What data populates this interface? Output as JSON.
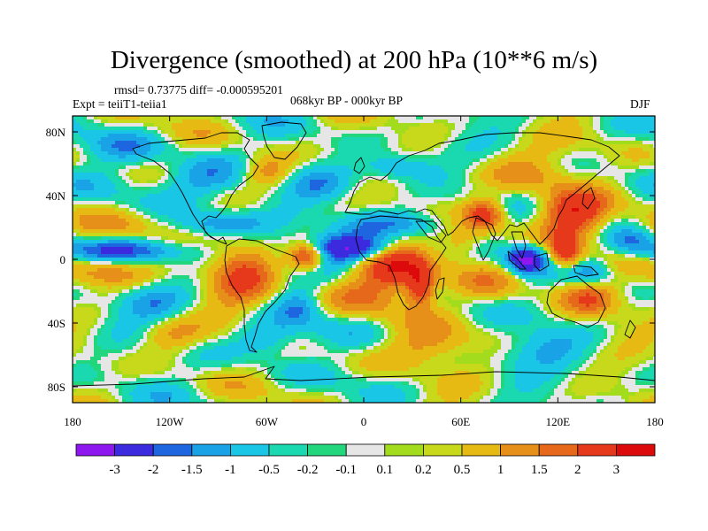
{
  "title": "Divergence (smoothed) at 200 hPa (10**6 m/s)",
  "stats_text": "rmsd= 0.73775 diff= -0.000595201",
  "experiment_text": "Expt = teiiT1-teiia1",
  "period_text": "068kyr BP - 000kyr BP",
  "season_text": "DJF",
  "chart_data": {
    "type": "heatmap",
    "projection": "cylindrical-equidistant",
    "xlim": [
      -180,
      180
    ],
    "ylim": [
      -90,
      90
    ],
    "x_ticks": [
      {
        "value": -180,
        "label": "180"
      },
      {
        "value": -120,
        "label": "120W"
      },
      {
        "value": -60,
        "label": "60W"
      },
      {
        "value": 0,
        "label": "0"
      },
      {
        "value": 60,
        "label": "60E"
      },
      {
        "value": 120,
        "label": "120E"
      },
      {
        "value": 180,
        "label": "180"
      }
    ],
    "y_ticks": [
      {
        "value": 80,
        "label": "80N"
      },
      {
        "value": 40,
        "label": "40N"
      },
      {
        "value": 0,
        "label": "0"
      },
      {
        "value": -40,
        "label": "40S"
      },
      {
        "value": -80,
        "label": "80S"
      }
    ],
    "levels": [
      -3,
      -2,
      -1.5,
      -1,
      -0.5,
      -0.2,
      -0.1,
      0.1,
      0.2,
      0.5,
      1,
      1.5,
      2,
      3
    ],
    "level_labels": [
      "-3",
      "-2",
      "-1.5",
      "-1",
      "-0.5",
      "-0.2",
      "-0.1",
      "0.1",
      "0.2",
      "0.5",
      "1",
      "1.5",
      "2",
      "3"
    ],
    "colors": [
      "#8e17f0",
      "#3c2adf",
      "#1e66e0",
      "#1aa2e6",
      "#19c6e6",
      "#1ad8b0",
      "#22d67e",
      "#e6e6e6",
      "#a2dc1c",
      "#c8d81a",
      "#e6ba12",
      "#e6901a",
      "#e6681a",
      "#e6381a",
      "#dc0a0a"
    ],
    "features": [
      {
        "lon": -5,
        "lat": 7,
        "amp": -3.2,
        "sx": 22,
        "sy": 6
      },
      {
        "lon": -35,
        "lat": 2,
        "amp": 3.0,
        "sx": 8,
        "sy": 6
      },
      {
        "lon": 20,
        "lat": -2,
        "amp": 2.6,
        "sx": 15,
        "sy": 12
      },
      {
        "lon": 35,
        "lat": -18,
        "amp": 2.4,
        "sx": 6,
        "sy": 8
      },
      {
        "lon": 0,
        "lat": -22,
        "amp": 1.3,
        "sx": 18,
        "sy": 10
      },
      {
        "lon": 20,
        "lat": 22,
        "amp": -1.6,
        "sx": 25,
        "sy": 6
      },
      {
        "lon": -75,
        "lat": -10,
        "amp": 1.8,
        "sx": 14,
        "sy": 16
      },
      {
        "lon": -90,
        "lat": 22,
        "amp": -1.7,
        "sx": 20,
        "sy": 6
      },
      {
        "lon": -150,
        "lat": 5,
        "amp": -1.7,
        "sx": 35,
        "sy": 5
      },
      {
        "lon": -155,
        "lat": 20,
        "amp": 1.2,
        "sx": 22,
        "sy": 7
      },
      {
        "lon": -160,
        "lat": -8,
        "amp": 1.4,
        "sx": 20,
        "sy": 7
      },
      {
        "lon": 75,
        "lat": 28,
        "amp": 2.7,
        "sx": 9,
        "sy": 7
      },
      {
        "lon": 100,
        "lat": 0,
        "amp": -3.0,
        "sx": 8,
        "sy": 6
      },
      {
        "lon": 125,
        "lat": 5,
        "amp": 2.6,
        "sx": 7,
        "sy": 8
      },
      {
        "lon": 130,
        "lat": 28,
        "amp": 2.8,
        "sx": 14,
        "sy": 9
      },
      {
        "lon": 140,
        "lat": -8,
        "amp": -1.5,
        "sx": 10,
        "sy": 6
      },
      {
        "lon": 140,
        "lat": -25,
        "amp": 1.6,
        "sx": 12,
        "sy": 8
      },
      {
        "lon": 80,
        "lat": -15,
        "amp": 1.0,
        "sx": 15,
        "sy": 10
      },
      {
        "lon": 60,
        "lat": 10,
        "amp": 1.3,
        "sx": 10,
        "sy": 8
      },
      {
        "lon": -100,
        "lat": 50,
        "amp": -1.5,
        "sx": 22,
        "sy": 9
      },
      {
        "lon": -60,
        "lat": 55,
        "amp": 1.6,
        "sx": 12,
        "sy": 7
      },
      {
        "lon": -25,
        "lat": 48,
        "amp": -1.0,
        "sx": 15,
        "sy": 8
      },
      {
        "lon": 20,
        "lat": 58,
        "amp": -1.4,
        "sx": 15,
        "sy": 6
      },
      {
        "lon": 100,
        "lat": 55,
        "amp": 1.1,
        "sx": 20,
        "sy": 10
      },
      {
        "lon": -150,
        "lat": 70,
        "amp": -0.8,
        "sx": 18,
        "sy": 8
      },
      {
        "lon": -60,
        "lat": -50,
        "amp": -1.6,
        "sx": 15,
        "sy": 8
      },
      {
        "lon": -120,
        "lat": -48,
        "amp": 1.1,
        "sx": 14,
        "sy": 8
      },
      {
        "lon": 40,
        "lat": -55,
        "amp": 1.2,
        "sx": 20,
        "sy": 8
      },
      {
        "lon": 110,
        "lat": -55,
        "amp": -1.0,
        "sx": 18,
        "sy": 8
      },
      {
        "lon": 165,
        "lat": 12,
        "amp": -1.5,
        "sx": 10,
        "sy": 6
      },
      {
        "lon": -130,
        "lat": -28,
        "amp": -1.1,
        "sx": 15,
        "sy": 8
      },
      {
        "lon": -40,
        "lat": -30,
        "amp": -1.3,
        "sx": 10,
        "sy": 8
      }
    ]
  }
}
